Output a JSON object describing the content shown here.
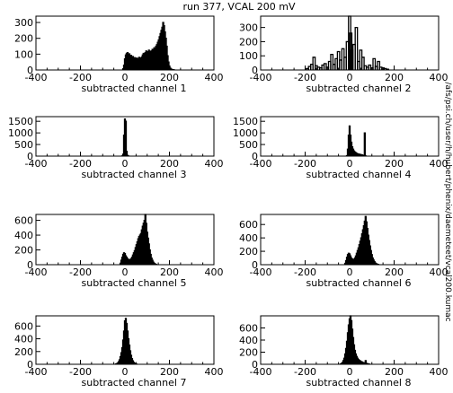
{
  "title": "run 377, VCAL 200 mV",
  "side_label": "/afs/psi.ch/user/h/hubert/phenix/daemeteet/vcal200.kumac",
  "chart_data": [
    {
      "type": "bar",
      "xlabel": "subtracted channel 1",
      "xlim": [
        -400,
        400
      ],
      "ylim": [
        0,
        340
      ],
      "xticks": [
        -400,
        -200,
        0,
        200,
        400
      ],
      "yticks": [
        0,
        100,
        200,
        300
      ],
      "x": [
        -8,
        -4,
        0,
        4,
        8,
        12,
        16,
        20,
        24,
        28,
        32,
        36,
        40,
        44,
        48,
        52,
        56,
        60,
        64,
        68,
        72,
        76,
        80,
        84,
        88,
        92,
        96,
        100,
        104,
        108,
        112,
        116,
        120,
        124,
        128,
        132,
        136,
        140,
        144,
        148,
        152,
        156,
        160,
        164,
        168,
        172,
        176,
        180,
        184,
        188,
        192,
        196,
        200,
        204,
        208,
        212,
        216,
        220
      ],
      "values": [
        8,
        30,
        70,
        95,
        105,
        110,
        98,
        102,
        88,
        92,
        80,
        85,
        72,
        78,
        70,
        75,
        68,
        72,
        80,
        76,
        70,
        82,
        95,
        105,
        98,
        110,
        120,
        108,
        115,
        125,
        112,
        118,
        120,
        130,
        122,
        140,
        135,
        150,
        160,
        175,
        190,
        210,
        230,
        250,
        270,
        300,
        280,
        240,
        200,
        150,
        90,
        50,
        25,
        12,
        6,
        3,
        2,
        1
      ]
    },
    {
      "type": "bar",
      "xlabel": "subtracted channel 2",
      "xlim": [
        -400,
        400
      ],
      "ylim": [
        0,
        380
      ],
      "xticks": [
        -400,
        -200,
        0,
        200,
        400
      ],
      "yticks": [
        0,
        100,
        200,
        300
      ],
      "x": [
        -190,
        -180,
        -170,
        -160,
        -150,
        -140,
        -130,
        -120,
        -110,
        -100,
        -90,
        -80,
        -70,
        -60,
        -50,
        -40,
        -30,
        -20,
        -10,
        0,
        5,
        10,
        20,
        30,
        40,
        50,
        60,
        70,
        80,
        90,
        100,
        110,
        120,
        130,
        140,
        150,
        160,
        170
      ],
      "values": [
        10,
        25,
        40,
        90,
        30,
        20,
        15,
        35,
        45,
        20,
        60,
        110,
        40,
        80,
        130,
        70,
        150,
        90,
        200,
        380,
        260,
        140,
        180,
        300,
        60,
        140,
        90,
        30,
        20,
        35,
        15,
        80,
        25,
        60,
        20,
        15,
        10,
        5
      ]
    },
    {
      "type": "bar",
      "xlabel": "subtracted channel 3",
      "xlim": [
        -400,
        400
      ],
      "ylim": [
        0,
        1700
      ],
      "xticks": [
        -400,
        -200,
        0,
        200,
        400
      ],
      "yticks": [
        0,
        500,
        1000,
        1500
      ],
      "x": [
        -12,
        -8,
        -4,
        0,
        4,
        8,
        12,
        16
      ],
      "values": [
        10,
        80,
        900,
        1600,
        1500,
        200,
        30,
        5
      ]
    },
    {
      "type": "bar",
      "xlabel": "subtracted channel 4",
      "xlim": [
        -400,
        400
      ],
      "ylim": [
        0,
        1700
      ],
      "xticks": [
        -400,
        -200,
        0,
        200,
        400
      ],
      "yticks": [
        0,
        500,
        1000,
        1500
      ],
      "x": [
        -12,
        -8,
        -4,
        0,
        4,
        8,
        12,
        16,
        20,
        24,
        28,
        32,
        36,
        40,
        44,
        48,
        52,
        56,
        60,
        64,
        68,
        72
      ],
      "values": [
        20,
        300,
        900,
        1300,
        900,
        600,
        400,
        300,
        220,
        180,
        150,
        120,
        100,
        90,
        80,
        70,
        60,
        50,
        40,
        30,
        1000,
        10
      ]
    },
    {
      "type": "bar",
      "xlabel": "subtracted channel 5",
      "xlim": [
        -400,
        400
      ],
      "ylim": [
        0,
        680
      ],
      "xticks": [
        -400,
        -200,
        0,
        200,
        400
      ],
      "yticks": [
        0,
        200,
        400,
        600
      ],
      "x": [
        -20,
        -16,
        -12,
        -8,
        -4,
        0,
        4,
        8,
        12,
        16,
        20,
        24,
        28,
        32,
        36,
        40,
        44,
        48,
        52,
        56,
        60,
        64,
        68,
        72,
        76,
        80,
        84,
        88,
        92,
        96,
        100,
        104,
        108,
        112,
        116,
        120,
        124,
        128,
        132,
        136,
        140
      ],
      "values": [
        20,
        60,
        100,
        140,
        160,
        150,
        120,
        100,
        80,
        70,
        65,
        70,
        80,
        100,
        130,
        160,
        190,
        230,
        270,
        310,
        350,
        380,
        400,
        420,
        470,
        520,
        560,
        600,
        680,
        560,
        440,
        360,
        280,
        200,
        140,
        90,
        60,
        35,
        20,
        10,
        5
      ]
    },
    {
      "type": "bar",
      "xlabel": "subtracted channel 6",
      "xlim": [
        -400,
        400
      ],
      "ylim": [
        0,
        750
      ],
      "xticks": [
        -400,
        -200,
        0,
        200,
        400
      ],
      "yticks": [
        0,
        200,
        400,
        600
      ],
      "x": [
        -20,
        -16,
        -12,
        -8,
        -4,
        0,
        4,
        8,
        12,
        16,
        20,
        24,
        28,
        32,
        36,
        40,
        44,
        48,
        52,
        56,
        60,
        64,
        68,
        72,
        76,
        80,
        84,
        88,
        92,
        96,
        100,
        104,
        108,
        112,
        116,
        120,
        124,
        128
      ],
      "values": [
        20,
        60,
        110,
        150,
        170,
        160,
        130,
        100,
        85,
        75,
        80,
        100,
        130,
        170,
        210,
        250,
        300,
        350,
        400,
        460,
        520,
        580,
        650,
        720,
        640,
        540,
        440,
        360,
        280,
        210,
        150,
        100,
        70,
        45,
        25,
        15,
        8,
        4
      ]
    },
    {
      "type": "bar",
      "xlabel": "subtracted channel 7",
      "xlim": [
        -400,
        400
      ],
      "ylim": [
        0,
        760
      ],
      "xticks": [
        -400,
        -200,
        0,
        200,
        400
      ],
      "yticks": [
        0,
        200,
        400,
        600
      ],
      "x": [
        -40,
        -36,
        -32,
        -28,
        -24,
        -20,
        -16,
        -12,
        -8,
        -4,
        0,
        4,
        8,
        12,
        16,
        20,
        24,
        28,
        32,
        36,
        40,
        44,
        48,
        52
      ],
      "values": [
        5,
        10,
        20,
        40,
        70,
        120,
        180,
        260,
        380,
        520,
        680,
        720,
        640,
        520,
        400,
        300,
        210,
        140,
        90,
        55,
        30,
        15,
        8,
        3
      ]
    },
    {
      "type": "bar",
      "xlabel": "subtracted channel 8",
      "xlim": [
        -400,
        400
      ],
      "ylim": [
        0,
        800
      ],
      "xticks": [
        -400,
        -200,
        0,
        200,
        400
      ],
      "yticks": [
        0,
        200,
        400,
        600
      ],
      "x": [
        -40,
        -36,
        -32,
        -28,
        -24,
        -20,
        -16,
        -12,
        -8,
        -4,
        0,
        4,
        8,
        12,
        16,
        20,
        24,
        28,
        32,
        36,
        40,
        44,
        48,
        52,
        56,
        60,
        64,
        68,
        72,
        76,
        80,
        84,
        88
      ],
      "values": [
        5,
        15,
        30,
        60,
        100,
        170,
        260,
        380,
        520,
        650,
        750,
        800,
        720,
        580,
        440,
        320,
        230,
        170,
        130,
        100,
        80,
        65,
        55,
        45,
        38,
        30,
        25,
        20,
        60,
        15,
        10,
        6,
        3
      ]
    }
  ]
}
